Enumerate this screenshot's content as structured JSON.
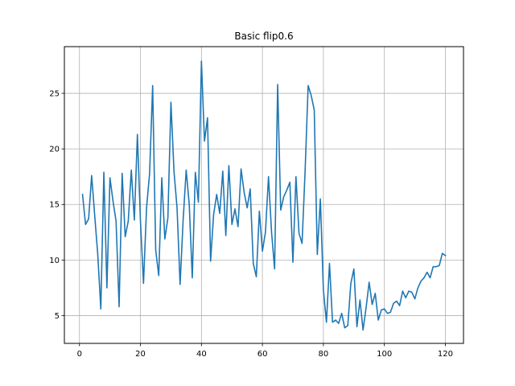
{
  "chart_data": {
    "type": "line",
    "title": "Basic flip0.6",
    "xlabel": "",
    "ylabel": "",
    "xlim": [
      -4.95,
      125.95
    ],
    "ylim": [
      2.5,
      29.2
    ],
    "xticks": [
      0,
      20,
      40,
      60,
      80,
      100,
      120
    ],
    "yticks": [
      5,
      10,
      15,
      20,
      25
    ],
    "grid": true,
    "line_color": "#1f77b4",
    "series": [
      {
        "x": [
          1,
          2,
          3,
          4,
          5,
          6,
          7,
          8,
          9,
          10,
          11,
          12,
          13,
          14,
          15,
          16,
          17,
          18,
          19,
          20,
          21,
          22,
          23,
          24,
          25,
          26,
          27,
          28,
          29,
          30,
          31,
          32,
          33,
          34,
          35,
          36,
          37,
          38,
          39,
          40,
          41,
          42,
          43,
          44,
          45,
          46,
          47,
          48,
          49,
          50,
          51,
          52,
          53,
          54,
          55,
          56,
          57,
          58,
          59,
          60,
          61,
          62,
          63,
          64,
          65,
          66,
          67,
          68,
          69,
          70,
          71,
          72,
          73,
          74,
          75,
          76,
          77,
          78,
          79,
          80,
          81,
          82,
          83,
          84,
          85,
          86,
          87,
          88,
          89,
          90,
          91,
          92,
          93,
          94,
          95,
          96,
          97,
          98,
          99,
          100,
          101,
          102,
          103,
          104,
          105,
          106,
          107,
          108,
          109,
          110,
          111,
          112,
          113,
          114,
          115,
          116,
          117,
          118,
          119,
          120
        ],
        "values": [
          15.9,
          13.2,
          13.7,
          17.6,
          14.0,
          10.5,
          5.6,
          17.9,
          7.5,
          17.4,
          15.3,
          13.5,
          5.8,
          17.8,
          12.1,
          13.5,
          18.1,
          13.6,
          21.3,
          13.5,
          7.9,
          14.7,
          17.8,
          25.7,
          10.9,
          8.6,
          17.4,
          11.9,
          13.8,
          24.2,
          18.0,
          14.7,
          7.8,
          13.6,
          18.1,
          15.0,
          8.4,
          17.9,
          15.2,
          27.9,
          20.7,
          22.8,
          9.9,
          14.1,
          15.9,
          14.2,
          18.0,
          12.2,
          18.5,
          13.2,
          14.6,
          13.0,
          18.2,
          16.1,
          14.7,
          16.4,
          9.7,
          8.5,
          14.4,
          10.8,
          12.5,
          17.5,
          12.5,
          9.2,
          25.8,
          14.5,
          15.7,
          16.3,
          17.0,
          9.8,
          17.5,
          12.4,
          11.5,
          18.0,
          25.7,
          24.8,
          23.5,
          10.5,
          15.5,
          7.3,
          4.4,
          9.7,
          4.4,
          4.6,
          4.3,
          5.2,
          3.9,
          4.1,
          7.9,
          9.2,
          4.0,
          6.4,
          3.7,
          5.7,
          8.0,
          6.0,
          7.0,
          4.6,
          5.5,
          5.6,
          5.2,
          5.3,
          6.1,
          6.3,
          5.9,
          7.2,
          6.6,
          7.2,
          7.1,
          6.5,
          7.5,
          8.1,
          8.4,
          8.9,
          8.4,
          9.4,
          9.4,
          9.5,
          10.6,
          10.4
        ]
      }
    ]
  }
}
